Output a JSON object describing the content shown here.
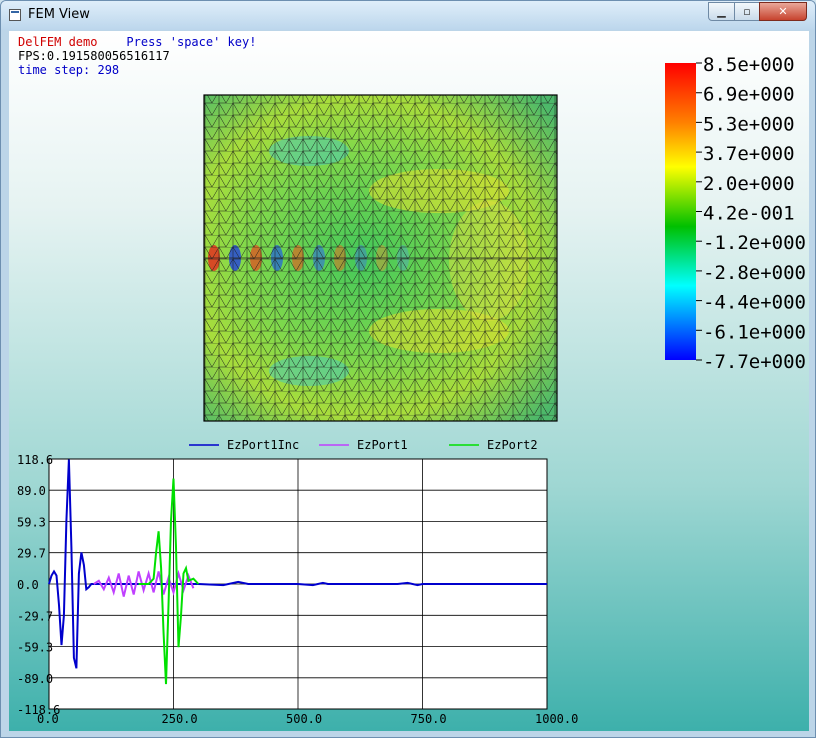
{
  "window": {
    "title": "FEM View",
    "min_glyph": "▁",
    "max_glyph": "▫",
    "close_glyph": "✕"
  },
  "hud": {
    "app_name": "DelFEM demo",
    "hint": "Press 'space' key!",
    "fps": "FPS:0.191580056516117",
    "time_step": "time step: 298"
  },
  "colorbar": {
    "labels": [
      "8.5e+000",
      "6.9e+000",
      "5.3e+000",
      "3.7e+000",
      "2.0e+000",
      "4.2e-001",
      "-1.2e+000",
      "-2.8e+000",
      "-4.4e+000",
      "-6.1e+000",
      "-7.7e+000"
    ],
    "colors": [
      "#ff0000",
      "#ff8000",
      "#ffff00",
      "#00c000",
      "#00ffff",
      "#0000ff"
    ]
  },
  "chart_data": {
    "type": "line",
    "xlim": [
      0.0,
      1000.0
    ],
    "ylim": [
      -118.6,
      118.6
    ],
    "x_ticks": [
      "0.0",
      "250.0",
      "500.0",
      "750.0",
      "1000.0"
    ],
    "x_tick_values": [
      0,
      250,
      500,
      750,
      1000
    ],
    "y_ticks": [
      "118.6",
      "89.0",
      "59.3",
      "29.7",
      "0.0",
      "-29.7",
      "-59.3",
      "-89.0",
      "-118.6"
    ],
    "y_tick_values": [
      118.6,
      89.0,
      59.3,
      29.7,
      0.0,
      -29.7,
      -59.3,
      -89.0,
      -118.6
    ],
    "grid": true,
    "legend_position": "top",
    "series": [
      {
        "name": "EzPort1Inc",
        "color": "#0000cc",
        "x": [
          0,
          5,
          10,
          15,
          20,
          25,
          30,
          35,
          40,
          45,
          50,
          55,
          60,
          65,
          70,
          75,
          80,
          85,
          90,
          95,
          100,
          110,
          120,
          130,
          140,
          150,
          160,
          170,
          180,
          190,
          200,
          210,
          220,
          230,
          240,
          250,
          260,
          270,
          280,
          290,
          300,
          350,
          380,
          400,
          430,
          500,
          530,
          550,
          560,
          580,
          600,
          620,
          700,
          720,
          740,
          750,
          770,
          800,
          900,
          1000
        ],
        "y": [
          0,
          8,
          12,
          8,
          -20,
          -58,
          -30,
          60,
          118,
          35,
          -70,
          -80,
          10,
          30,
          18,
          -5,
          -3,
          0,
          0,
          0,
          0,
          0,
          0,
          0,
          0,
          0,
          0,
          0,
          0,
          0,
          0,
          0,
          0,
          0,
          0,
          0,
          0,
          0,
          0,
          0,
          0,
          -1,
          2,
          0,
          0,
          0,
          -1,
          1,
          0,
          0,
          0,
          0,
          0,
          1,
          -1,
          0,
          0,
          0,
          0,
          0
        ]
      },
      {
        "name": "EzPort1",
        "color": "#c040ff",
        "x": [
          90,
          100,
          110,
          120,
          130,
          140,
          150,
          160,
          170,
          180,
          190,
          200,
          210,
          220,
          230,
          240,
          250,
          260,
          270,
          280,
          290
        ],
        "y": [
          0,
          3,
          -5,
          6,
          -8,
          10,
          -12,
          8,
          -10,
          12,
          -6,
          10,
          -8,
          12,
          -10,
          6,
          -8,
          10,
          -6,
          8,
          -4
        ]
      },
      {
        "name": "EzPort2",
        "color": "#00e000",
        "x": [
          180,
          190,
          200,
          210,
          215,
          220,
          225,
          230,
          235,
          240,
          245,
          250,
          255,
          260,
          265,
          270,
          275,
          280,
          290,
          300
        ],
        "y": [
          0,
          0,
          0,
          5,
          30,
          50,
          15,
          -45,
          -95,
          -20,
          60,
          100,
          35,
          -60,
          -30,
          10,
          15,
          3,
          5,
          0
        ]
      }
    ]
  }
}
